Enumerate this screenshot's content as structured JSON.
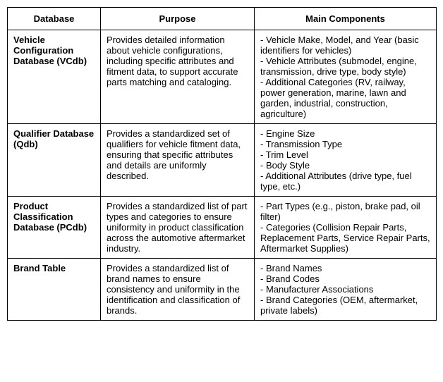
{
  "table": {
    "headers": {
      "database": "Database",
      "purpose": "Purpose",
      "components": "Main Components"
    },
    "rows": [
      {
        "name": "Vehicle Configuration Database (VCdb)",
        "purpose": "Provides detailed information about vehicle configurations, including specific attributes and fitment data, to support accurate parts matching and cataloging.",
        "components": [
          "- Vehicle Make, Model, and Year (basic identifiers for vehicles)",
          "- Vehicle Attributes (submodel, engine, transmission, drive type, body style)",
          "- Additional Categories (RV, railway, power generation, marine, lawn and garden, industrial, construction, agriculture)"
        ]
      },
      {
        "name": "Qualifier Database (Qdb)",
        "purpose": "Provides a standardized set of qualifiers for vehicle fitment data, ensuring that specific attributes and details are uniformly described.",
        "components": [
          "- Engine Size",
          "- Transmission Type",
          "- Trim Level",
          "- Body Style",
          "- Additional Attributes (drive type, fuel type, etc.)"
        ]
      },
      {
        "name": "Product Classification Database (PCdb)",
        "purpose": "Provides a standardized list of part types and categories to ensure uniformity in product classification across the automotive aftermarket industry.",
        "components": [
          "- Part Types (e.g., piston, brake pad, oil filter)",
          "- Categories (Collision Repair Parts, Replacement Parts, Service Repair Parts, Aftermarket Supplies)"
        ]
      },
      {
        "name": "Brand Table",
        "purpose": "Provides a standardized list of brand names to ensure consistency and uniformity in the identification and classification of brands.",
        "components": [
          "- Brand Names",
          "- Brand Codes",
          "- Manufacturer Associations",
          "- Brand Categories (OEM, aftermarket, private labels)"
        ]
      }
    ]
  }
}
